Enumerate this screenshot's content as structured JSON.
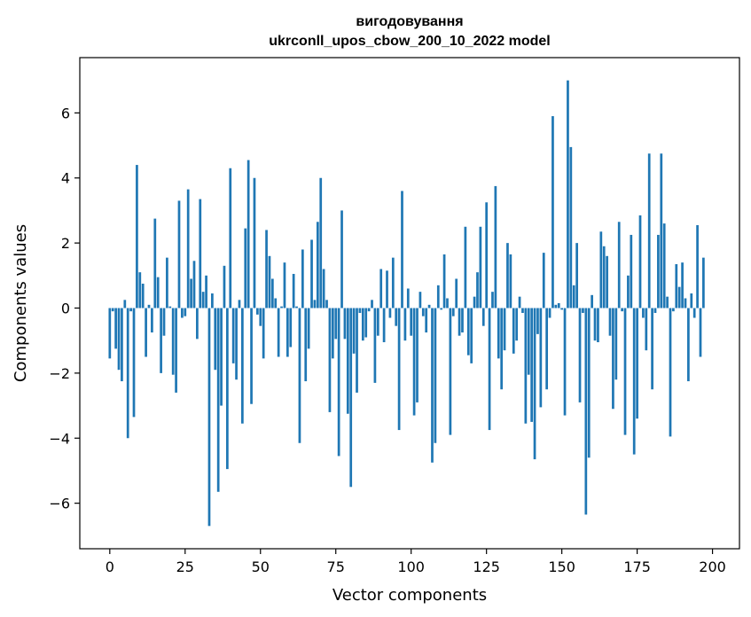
{
  "chart_data": {
    "type": "bar",
    "title": "вигодовування",
    "subtitle": "ukrconll_upos_cbow_200_10_2022 model",
    "xlabel": "Vector components",
    "ylabel": "Components values",
    "xlim": [
      -9.95,
      208.95
    ],
    "ylim": [
      -7.4,
      7.7
    ],
    "xticks": [
      0,
      25,
      50,
      75,
      100,
      125,
      150,
      175,
      200
    ],
    "yticks": [
      -6,
      -4,
      -2,
      0,
      2,
      4,
      6
    ],
    "ytick_labels": [
      "−6",
      "−4",
      "−2",
      "0",
      "2",
      "4",
      "6"
    ],
    "bar_color": "#1f77b4",
    "values": [
      -1.55,
      -0.1,
      -1.25,
      -1.9,
      -2.25,
      0.25,
      -4.0,
      -0.1,
      -3.35,
      4.4,
      1.1,
      0.75,
      -1.5,
      0.1,
      -0.75,
      2.75,
      0.95,
      -2.0,
      -0.85,
      1.55,
      0.05,
      -2.05,
      -2.6,
      3.3,
      -0.3,
      -0.25,
      3.65,
      0.9,
      1.45,
      -0.95,
      3.35,
      0.5,
      1.0,
      -6.7,
      0.45,
      -1.9,
      -5.65,
      -3.0,
      1.3,
      -4.95,
      4.3,
      -1.7,
      -2.2,
      0.25,
      -3.55,
      2.45,
      4.55,
      -2.95,
      4.0,
      -0.2,
      -0.55,
      -1.55,
      2.4,
      1.6,
      0.9,
      0.3,
      -1.5,
      0.05,
      1.4,
      -1.5,
      -1.2,
      1.05,
      0.05,
      -4.15,
      1.8,
      -2.25,
      -1.25,
      2.1,
      0.25,
      2.65,
      4.0,
      1.2,
      0.25,
      -3.2,
      -1.55,
      -0.95,
      -4.55,
      3.0,
      -0.95,
      -3.25,
      -5.5,
      -1.4,
      -2.6,
      -0.15,
      -1.0,
      -0.9,
      -0.1,
      0.25,
      -2.3,
      -0.85,
      1.2,
      -1.05,
      1.15,
      -0.3,
      1.55,
      -0.55,
      -3.75,
      3.6,
      -1.0,
      0.6,
      -0.85,
      -3.3,
      -2.9,
      0.5,
      -0.25,
      -0.75,
      0.1,
      -4.75,
      -4.15,
      0.7,
      -0.05,
      1.65,
      0.3,
      -3.9,
      -0.25,
      0.9,
      -0.85,
      -0.75,
      2.5,
      -1.45,
      -1.7,
      0.35,
      1.1,
      2.5,
      -0.55,
      3.25,
      -3.75,
      0.5,
      3.75,
      -1.55,
      -2.5,
      -1.3,
      2.0,
      1.65,
      -1.4,
      -1.0,
      0.35,
      -0.15,
      -3.55,
      -2.05,
      -3.5,
      -4.65,
      -0.8,
      -3.05,
      1.7,
      -2.5,
      -0.3,
      5.9,
      0.1,
      0.15,
      -0.05,
      -3.3,
      7.0,
      4.95,
      0.7,
      2.0,
      -2.9,
      -0.15,
      -6.35,
      -4.6,
      0.4,
      -1.0,
      -1.05,
      2.35,
      1.9,
      1.6,
      -0.85,
      -3.1,
      -2.2,
      2.65,
      -0.1,
      -3.9,
      1.0,
      2.25,
      -4.5,
      -3.4,
      2.85,
      -0.3,
      -1.3,
      4.75,
      -2.5,
      -0.15,
      2.25,
      4.75,
      2.6,
      0.35,
      -3.95,
      -0.1,
      1.35,
      0.65,
      1.4,
      0.3,
      -2.25,
      0.45,
      -0.3,
      2.55,
      -1.5,
      1.55
    ]
  }
}
